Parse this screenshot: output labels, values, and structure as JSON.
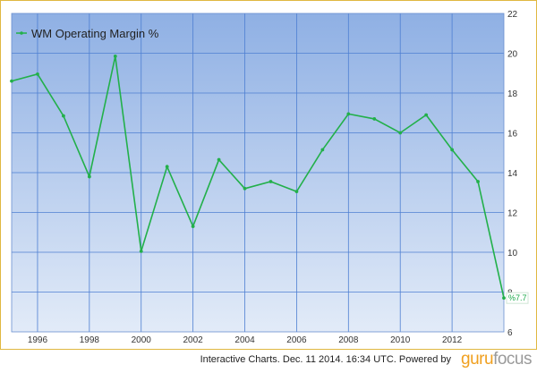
{
  "chart_data": {
    "type": "line",
    "x": [
      1995,
      1996,
      1997,
      1998,
      1999,
      2000,
      2001,
      2002,
      2003,
      2004,
      2005,
      2006,
      2007,
      2008,
      2009,
      2010,
      2011,
      2012,
      2013,
      2014
    ],
    "series": [
      {
        "name": "WM Operating Margin %",
        "values": [
          18.6,
          18.95,
          16.85,
          13.8,
          19.85,
          10.05,
          14.3,
          11.3,
          14.65,
          13.2,
          13.55,
          13.05,
          15.15,
          16.95,
          16.7,
          16.0,
          16.9,
          15.15,
          13.55,
          7.7
        ],
        "color": "#22b04a"
      }
    ],
    "x_ticks": [
      "1996",
      "1998",
      "2000",
      "2002",
      "2004",
      "2006",
      "2008",
      "2010",
      "2012"
    ],
    "y_ticks": [
      "6",
      "8",
      "10",
      "12",
      "14",
      "16",
      "18",
      "20",
      "22"
    ],
    "ylim": [
      6,
      22
    ],
    "y_axis_side": "right",
    "grid": true,
    "legend_position": "top-left",
    "end_label": "%7.7",
    "background_gradient": [
      "#8fb0e4",
      "#e2ebf8"
    ]
  },
  "footer": {
    "text": "Interactive Charts. Dec. 11 2014. 16:34 UTC. Powered by",
    "brand_a": "guru",
    "brand_b": "focus"
  }
}
